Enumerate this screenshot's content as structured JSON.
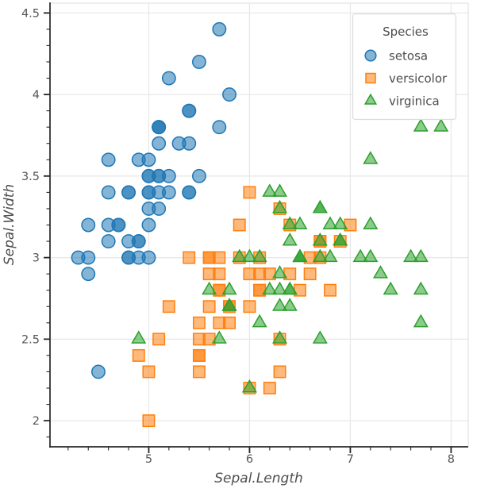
{
  "figure": {
    "background": "#ffffff"
  },
  "chart_data": {
    "type": "scatter",
    "title": "",
    "xlabel": "Sepal.Length",
    "ylabel": "Sepal.Width",
    "xlim": [
      4.02,
      8.17
    ],
    "ylim": [
      1.84,
      4.56
    ],
    "xticks": [
      5,
      6,
      7,
      8
    ],
    "yticks": [
      2,
      2.5,
      3,
      3.5,
      4,
      4.5
    ],
    "x_minor_step": 0.2,
    "y_minor_step": 0.1,
    "grid": true,
    "grid_color": "#e7e7e7",
    "spine_dark_color": "#262626",
    "spine_light_color": "#e3e3e3",
    "legend": {
      "title": "Species",
      "position": "upper right"
    },
    "series": [
      {
        "name": "setosa",
        "marker": "circle",
        "edge_color": "#1f77b4",
        "fill_color": "#1f77b4",
        "fill_alpha": 0.55,
        "points": [
          [
            5.1,
            3.5
          ],
          [
            4.9,
            3.0
          ],
          [
            4.7,
            3.2
          ],
          [
            4.6,
            3.1
          ],
          [
            5.0,
            3.6
          ],
          [
            5.4,
            3.9
          ],
          [
            4.6,
            3.4
          ],
          [
            5.0,
            3.4
          ],
          [
            4.4,
            2.9
          ],
          [
            4.9,
            3.1
          ],
          [
            5.4,
            3.7
          ],
          [
            4.8,
            3.4
          ],
          [
            4.8,
            3.0
          ],
          [
            4.3,
            3.0
          ],
          [
            5.8,
            4.0
          ],
          [
            5.7,
            4.4
          ],
          [
            5.4,
            3.9
          ],
          [
            5.1,
            3.5
          ],
          [
            5.7,
            3.8
          ],
          [
            5.1,
            3.8
          ],
          [
            5.4,
            3.4
          ],
          [
            5.1,
            3.7
          ],
          [
            4.6,
            3.6
          ],
          [
            5.1,
            3.3
          ],
          [
            4.8,
            3.4
          ],
          [
            5.0,
            3.0
          ],
          [
            5.0,
            3.4
          ],
          [
            5.2,
            3.5
          ],
          [
            5.2,
            3.4
          ],
          [
            4.7,
            3.2
          ],
          [
            4.8,
            3.1
          ],
          [
            5.4,
            3.4
          ],
          [
            5.2,
            4.1
          ],
          [
            5.5,
            4.2
          ],
          [
            4.9,
            3.1
          ],
          [
            5.0,
            3.2
          ],
          [
            5.5,
            3.5
          ],
          [
            4.9,
            3.6
          ],
          [
            4.4,
            3.0
          ],
          [
            5.1,
            3.4
          ],
          [
            5.0,
            3.5
          ],
          [
            4.5,
            2.3
          ],
          [
            4.4,
            3.2
          ],
          [
            5.0,
            3.5
          ],
          [
            5.1,
            3.8
          ],
          [
            4.8,
            3.0
          ],
          [
            5.1,
            3.8
          ],
          [
            4.6,
            3.2
          ],
          [
            5.3,
            3.7
          ],
          [
            5.0,
            3.3
          ]
        ]
      },
      {
        "name": "versicolor",
        "marker": "square",
        "edge_color": "#ff7f0e",
        "fill_color": "#ff7f0e",
        "fill_alpha": 0.55,
        "points": [
          [
            7.0,
            3.2
          ],
          [
            6.4,
            3.2
          ],
          [
            6.9,
            3.1
          ],
          [
            5.5,
            2.3
          ],
          [
            6.5,
            2.8
          ],
          [
            5.7,
            2.8
          ],
          [
            6.3,
            3.3
          ],
          [
            4.9,
            2.4
          ],
          [
            6.6,
            2.9
          ],
          [
            5.2,
            2.7
          ],
          [
            5.0,
            2.0
          ],
          [
            5.9,
            3.0
          ],
          [
            6.0,
            2.2
          ],
          [
            6.1,
            2.9
          ],
          [
            5.6,
            2.9
          ],
          [
            6.7,
            3.1
          ],
          [
            5.6,
            3.0
          ],
          [
            5.8,
            2.7
          ],
          [
            6.2,
            2.2
          ],
          [
            5.6,
            2.5
          ],
          [
            5.9,
            3.2
          ],
          [
            6.1,
            2.8
          ],
          [
            6.3,
            2.5
          ],
          [
            6.1,
            2.8
          ],
          [
            6.4,
            2.9
          ],
          [
            6.6,
            3.0
          ],
          [
            6.8,
            2.8
          ],
          [
            6.7,
            3.0
          ],
          [
            6.0,
            2.9
          ],
          [
            5.7,
            2.6
          ],
          [
            5.5,
            2.4
          ],
          [
            5.5,
            2.4
          ],
          [
            5.8,
            2.7
          ],
          [
            6.0,
            2.7
          ],
          [
            5.4,
            3.0
          ],
          [
            6.0,
            3.4
          ],
          [
            6.7,
            3.1
          ],
          [
            6.3,
            2.3
          ],
          [
            5.6,
            3.0
          ],
          [
            5.5,
            2.5
          ],
          [
            5.5,
            2.6
          ],
          [
            6.1,
            3.0
          ],
          [
            5.8,
            2.6
          ],
          [
            5.0,
            2.3
          ],
          [
            5.6,
            2.7
          ],
          [
            5.7,
            3.0
          ],
          [
            5.7,
            2.9
          ],
          [
            6.2,
            2.9
          ],
          [
            5.1,
            2.5
          ],
          [
            5.7,
            2.8
          ]
        ]
      },
      {
        "name": "virginica",
        "marker": "triangle",
        "edge_color": "#2ca02c",
        "fill_color": "#2ca02c",
        "fill_alpha": 0.55,
        "points": [
          [
            6.3,
            3.3
          ],
          [
            5.8,
            2.7
          ],
          [
            7.1,
            3.0
          ],
          [
            6.3,
            2.9
          ],
          [
            6.5,
            3.0
          ],
          [
            7.6,
            3.0
          ],
          [
            4.9,
            2.5
          ],
          [
            7.3,
            2.9
          ],
          [
            6.7,
            2.5
          ],
          [
            7.2,
            3.6
          ],
          [
            6.5,
            3.2
          ],
          [
            6.4,
            2.7
          ],
          [
            6.8,
            3.0
          ],
          [
            5.7,
            2.5
          ],
          [
            5.8,
            2.8
          ],
          [
            6.4,
            3.2
          ],
          [
            6.5,
            3.0
          ],
          [
            7.7,
            3.8
          ],
          [
            7.7,
            2.6
          ],
          [
            6.0,
            2.2
          ],
          [
            6.9,
            3.2
          ],
          [
            5.6,
            2.8
          ],
          [
            7.7,
            2.8
          ],
          [
            6.3,
            2.7
          ],
          [
            6.7,
            3.3
          ],
          [
            7.2,
            3.2
          ],
          [
            6.2,
            2.8
          ],
          [
            6.1,
            3.0
          ],
          [
            6.4,
            2.8
          ],
          [
            7.2,
            3.0
          ],
          [
            7.4,
            2.8
          ],
          [
            7.9,
            3.8
          ],
          [
            6.4,
            2.8
          ],
          [
            6.3,
            2.8
          ],
          [
            6.1,
            2.6
          ],
          [
            7.7,
            3.0
          ],
          [
            6.3,
            3.4
          ],
          [
            6.4,
            3.1
          ],
          [
            6.0,
            3.0
          ],
          [
            6.9,
            3.1
          ],
          [
            6.7,
            3.1
          ],
          [
            6.9,
            3.1
          ],
          [
            5.8,
            2.7
          ],
          [
            6.8,
            3.2
          ],
          [
            6.7,
            3.3
          ],
          [
            6.7,
            3.0
          ],
          [
            6.3,
            2.5
          ],
          [
            6.5,
            3.0
          ],
          [
            6.2,
            3.4
          ],
          [
            5.9,
            3.0
          ]
        ]
      }
    ]
  }
}
